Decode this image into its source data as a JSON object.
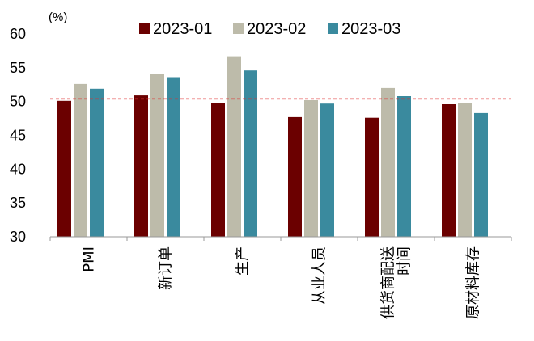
{
  "chart_data": {
    "type": "bar",
    "unit_label": "(%)",
    "categories": [
      "PMI",
      "新订单",
      "生产",
      "从业人员",
      "供货商配送时间",
      "原材料库存"
    ],
    "category_lines": [
      [
        "PMI"
      ],
      [
        "新订单"
      ],
      [
        "生产"
      ],
      [
        "从业人员"
      ],
      [
        "供货商配送",
        "时间"
      ],
      [
        "原材料库存"
      ]
    ],
    "series": [
      {
        "name": "2023-01",
        "color": "#6B0000",
        "values": [
          50.1,
          50.9,
          49.8,
          47.7,
          47.6,
          49.6
        ]
      },
      {
        "name": "2023-02",
        "color": "#BDBBAA",
        "values": [
          52.6,
          54.1,
          56.7,
          50.2,
          52.0,
          49.8
        ]
      },
      {
        "name": "2023-03",
        "color": "#3A8A9E",
        "values": [
          51.9,
          53.6,
          54.6,
          49.7,
          50.8,
          48.3
        ]
      }
    ],
    "ylim": [
      30,
      60
    ],
    "yticks": [
      30,
      35,
      40,
      45,
      50,
      55,
      60
    ],
    "reference_line": {
      "value": 50.4,
      "color": "#E03030",
      "style": "dashed"
    },
    "legend_position": "top",
    "grid": false
  }
}
